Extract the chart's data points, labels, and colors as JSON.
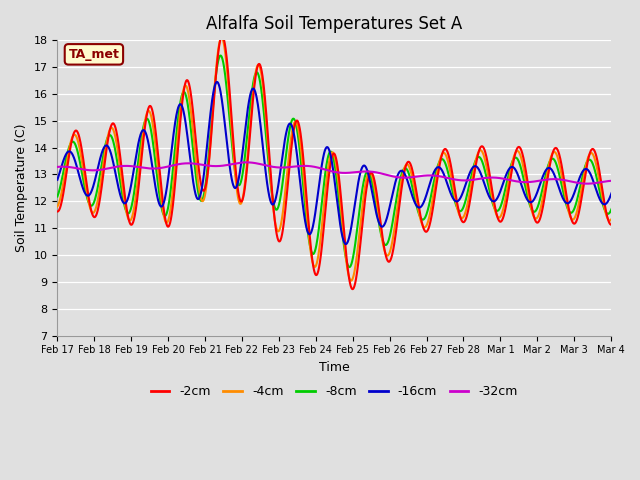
{
  "title": "Alfalfa Soil Temperatures Set A",
  "xlabel": "Time",
  "ylabel": "Soil Temperature (C)",
  "ylim": [
    7.0,
    18.0
  ],
  "yticks": [
    7.0,
    8.0,
    9.0,
    10.0,
    11.0,
    12.0,
    13.0,
    14.0,
    15.0,
    16.0,
    17.0,
    18.0
  ],
  "xtick_labels": [
    "Feb 17",
    "Feb 18",
    "Feb 19",
    "Feb 20",
    "Feb 21",
    "Feb 22",
    "Feb 23",
    "Feb 24",
    "Feb 25",
    "Feb 26",
    "Feb 27",
    "Feb 28",
    "Mar 1",
    "Mar 2",
    "Mar 3",
    "Mar 4"
  ],
  "annotation": "TA_met",
  "annotation_color": "#8B0000",
  "annotation_bg": "#FFFACD",
  "colors": {
    "-2cm": "#FF0000",
    "-4cm": "#FF8C00",
    "-8cm": "#00CC00",
    "-16cm": "#0000CC",
    "-32cm": "#CC00CC"
  },
  "line_width": 1.5,
  "bg_color": "#E0E0E0",
  "grid_color": "#FFFFFF"
}
